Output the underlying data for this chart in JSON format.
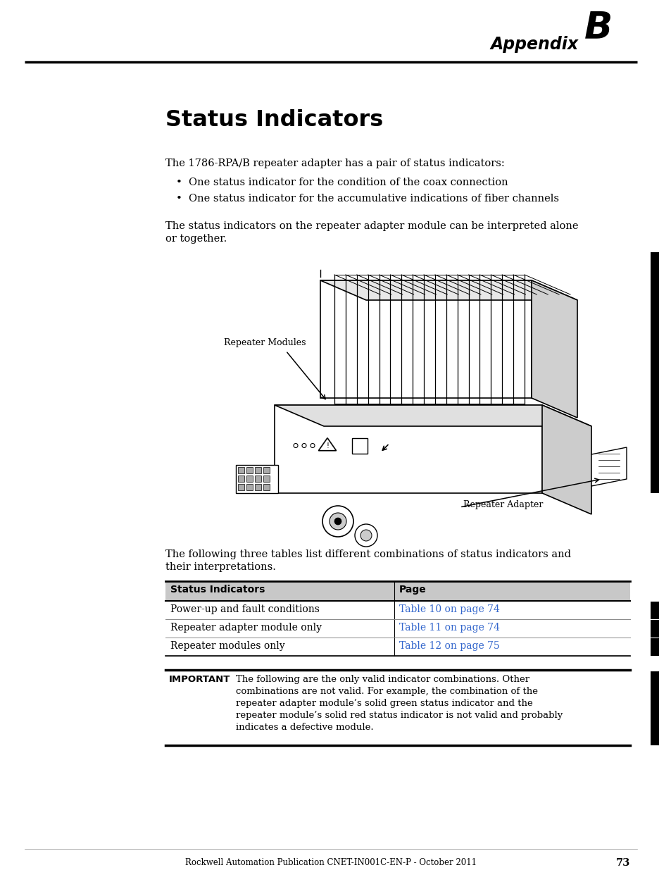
{
  "page_bg": "#ffffff",
  "appendix_label": "Appendix",
  "appendix_letter": "B",
  "section_title": "Status Indicators",
  "link_color": "#3366cc",
  "intro_text": "The 1786-RPA/B repeater adapter has a pair of status indicators:",
  "bullet_points": [
    "One status indicator for the condition of the coax connection",
    "One status indicator for the accumulative indications of fiber channels"
  ],
  "para2_line1": "The status indicators on the repeater adapter module can be interpreted alone",
  "para2_line2": "or together.",
  "image_label_left": "Repeater Modules",
  "image_label_right": "Repeater Adapter",
  "para3_line1": "The following three tables list different combinations of status indicators and",
  "para3_line2": "their interpretations.",
  "table_header": [
    "Status Indicators",
    "Page"
  ],
  "table_rows": [
    [
      "Power-up and fault conditions",
      "Table 10 on page 74"
    ],
    [
      "Repeater adapter module only",
      "Table 11 on page 74"
    ],
    [
      "Repeater modules only",
      "Table 12 on page 75"
    ]
  ],
  "important_label": "IMPORTANT",
  "important_text_lines": [
    "The following are the only valid indicator combinations. Other",
    "combinations are not valid. For example, the combination of the",
    "repeater adapter module’s solid green status indicator and the",
    "repeater module’s solid red status indicator is not valid and probably",
    "indicates a defective module."
  ],
  "footer_text": "Rockwell Automation Publication CNET-IN001C-EN-P - October 2011",
  "footer_page": "73"
}
